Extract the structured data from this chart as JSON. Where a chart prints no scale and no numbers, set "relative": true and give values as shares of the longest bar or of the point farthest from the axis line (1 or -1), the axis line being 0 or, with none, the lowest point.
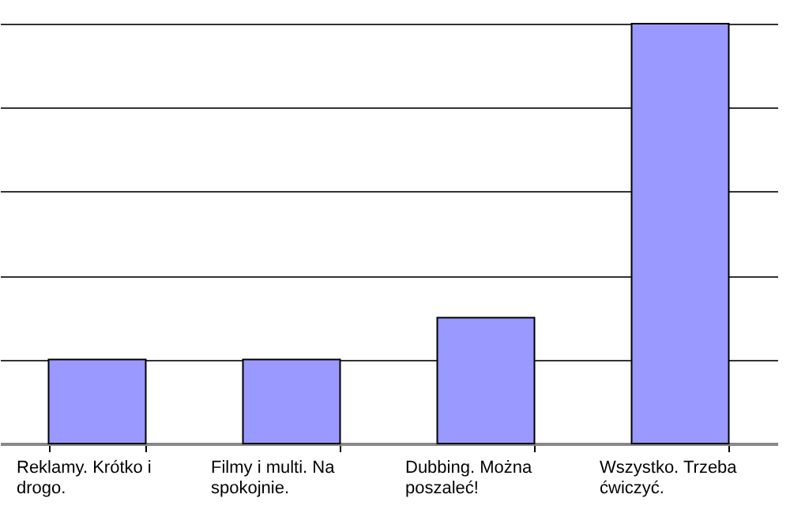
{
  "chart_data": {
    "type": "bar",
    "relative": true,
    "grid": "y",
    "color": "#9999ff",
    "categories": [
      "Reklamy. Krótko i drogo.",
      "Filmy i multi. Na spokojnie.",
      "Dubbing. Można poszaleć!",
      "Wszystko. Trzeba ćwiczyć."
    ],
    "values": [
      0.2,
      0.2,
      0.3,
      1
    ]
  }
}
